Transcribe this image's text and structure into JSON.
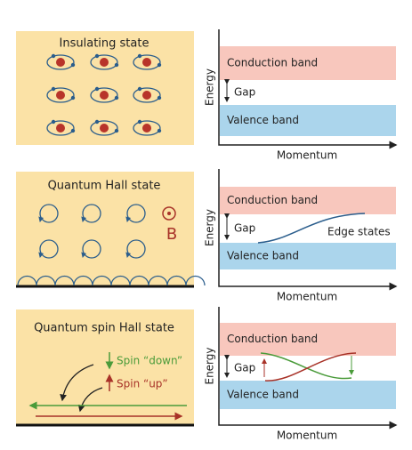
{
  "panels": [
    {
      "title": "Insulating state"
    },
    {
      "title": "Quantum Hall state",
      "field_label": "B"
    },
    {
      "title": "Quantum spin Hall state",
      "spin_down": "Spin “down”",
      "spin_up": "Spin “up”"
    }
  ],
  "band_diagrams": [
    {
      "y_label": "Energy",
      "x_label": "Momentum",
      "conduction": "Conduction band",
      "gap": "Gap",
      "valence": "Valence band"
    },
    {
      "y_label": "Energy",
      "x_label": "Momentum",
      "conduction": "Conduction band",
      "gap": "Gap",
      "valence": "Valence band",
      "edge": "Edge states"
    },
    {
      "y_label": "Energy",
      "x_label": "Momentum",
      "conduction": "Conduction band",
      "gap": "Gap",
      "valence": "Valence band"
    }
  ]
}
